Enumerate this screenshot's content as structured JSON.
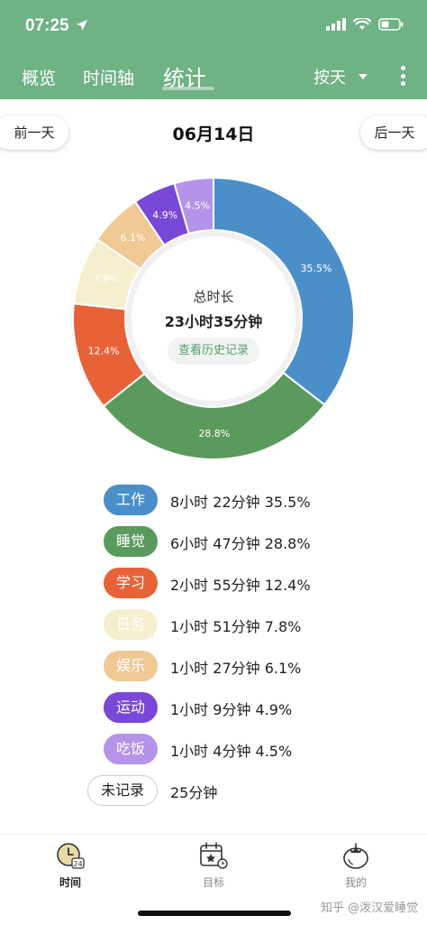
{
  "status_bar": {
    "time": "07:25"
  },
  "nav": {
    "tabs": [
      {
        "label": "概览"
      },
      {
        "label": "时间轴"
      },
      {
        "label": "统计"
      }
    ],
    "active_tab": "统计",
    "range_select": "按天"
  },
  "day_nav": {
    "prev_label": "前一天",
    "date": "06月14日",
    "next_label": "后一天"
  },
  "summary": {
    "total_label": "总时长",
    "total_value": "23小时35分钟",
    "history_button": "查看历史记录"
  },
  "chart_data": {
    "type": "pie",
    "slices": [
      {
        "label": "工作",
        "value": 35.5,
        "display": "35.5%",
        "color": "#4a8fca"
      },
      {
        "label": "睡觉",
        "value": 28.8,
        "display": "28.8%",
        "color": "#5a9a5c"
      },
      {
        "label": "学习",
        "value": 12.4,
        "display": "12.4%",
        "color": "#e86238"
      },
      {
        "label": "日务",
        "value": 7.8,
        "display": "7.8%",
        "color": "#f6efcf"
      },
      {
        "label": "娱乐",
        "value": 6.1,
        "display": "6.1%",
        "color": "#f0c894"
      },
      {
        "label": "运动",
        "value": 4.9,
        "display": "4.9%",
        "color": "#7a48d6"
      },
      {
        "label": "吃饭",
        "value": 4.5,
        "display": "4.5%",
        "color": "#b493e8"
      }
    ]
  },
  "legend": [
    {
      "label": "工作",
      "text": "8小时 22分钟 35.5%",
      "color": "#4a8fca",
      "text_color": "#ffffff"
    },
    {
      "label": "睡觉",
      "text": "6小时 47分钟 28.8%",
      "color": "#5a9a5c",
      "text_color": "#ffffff"
    },
    {
      "label": "学习",
      "text": "2小时 55分钟 12.4%",
      "color": "#e86238",
      "text_color": "#ffffff"
    },
    {
      "label": "日务",
      "text": "1小时 51分钟 7.8%",
      "color": "#f6efcf",
      "text_color": "#ffffff"
    },
    {
      "label": "娱乐",
      "text": "1小时 27分钟 6.1%",
      "color": "#f0c894",
      "text_color": "#ffffff"
    },
    {
      "label": "运动",
      "text": "1小时 9分钟 4.9%",
      "color": "#7a48d6",
      "text_color": "#ffffff"
    },
    {
      "label": "吃饭",
      "text": "1小时 4分钟 4.5%",
      "color": "#b493e8",
      "text_color": "#ffffff"
    },
    {
      "label": "未记录",
      "text": "25分钟",
      "color": "#ffffff",
      "text_color": "#222222"
    }
  ],
  "bottom_nav": [
    {
      "label": "时间",
      "icon": "clock-24-icon",
      "active": true
    },
    {
      "label": "目标",
      "icon": "calendar-target-icon",
      "active": false
    },
    {
      "label": "我的",
      "icon": "tomato-icon",
      "active": false
    }
  ],
  "watermark": "知乎 @泼汉爱睡觉",
  "colors": {
    "header_bg": "#6fb284",
    "accent_green": "#5a9c6c"
  }
}
